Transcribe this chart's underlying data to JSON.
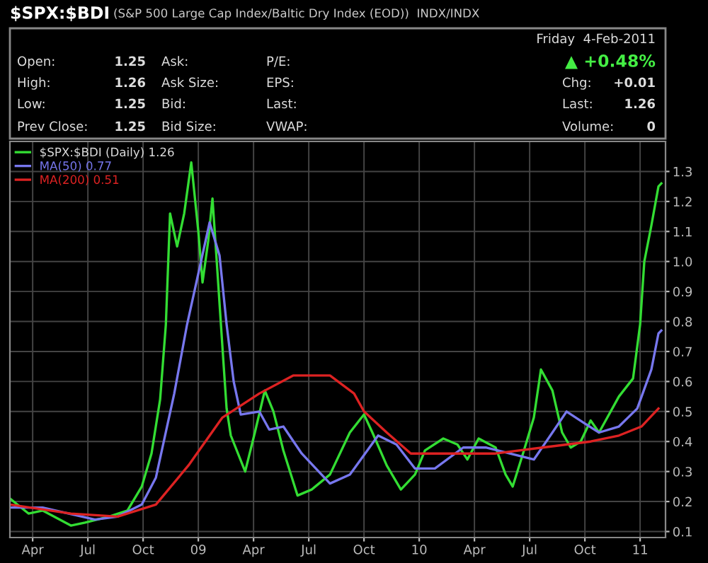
{
  "chart_data": {
    "type": "line",
    "title": "$SPX:$BDI",
    "subtitle": "(S&P 500 Large Cap Index/Baltic Dry Index (EOD))  INDX/INDX",
    "annotations": [
      "Friday  4-Feb-2011",
      "Open:",
      "1.25",
      "Ask:",
      "P/E:",
      "▲ +0.48%",
      "High:",
      "1.26",
      "Ask Size:",
      "EPS:",
      "Chg:",
      "+0.01",
      "Low:",
      "1.25",
      "Bid:",
      "Last:",
      "Last:",
      "1.26",
      "Prev Close:",
      "1.25",
      "Bid Size:",
      "VWAP:",
      "Volume:",
      "0"
    ],
    "legend": "top left",
    "grid": true,
    "tick_labels": "xy",
    "xlim": [
      2008.147,
      2011.115
    ],
    "ylim": [
      0.08,
      1.4
    ],
    "xticks": [
      {
        "value": 2008.25,
        "label": "Apr"
      },
      {
        "value": 2008.5,
        "label": "Jul"
      },
      {
        "value": 2008.75,
        "label": "Oct"
      },
      {
        "value": 2009.0,
        "label": "09"
      },
      {
        "value": 2009.25,
        "label": "Apr"
      },
      {
        "value": 2009.5,
        "label": "Jul"
      },
      {
        "value": 2009.75,
        "label": "Oct"
      },
      {
        "value": 2010.0,
        "label": "10"
      },
      {
        "value": 2010.25,
        "label": "Apr"
      },
      {
        "value": 2010.5,
        "label": "Jul"
      },
      {
        "value": 2010.75,
        "label": "Oct"
      },
      {
        "value": 2011.0,
        "label": "11"
      }
    ],
    "yticks": [
      0.1,
      0.2,
      0.3,
      0.4,
      0.5,
      0.6,
      0.7,
      0.8,
      0.9,
      {
        "value": 1.0,
        "label": "1.0"
      },
      1.1,
      1.2,
      1.3
    ],
    "series": [
      {
        "name": "$SPX:$BDI (Daily) 1.26",
        "color": "#33dd33",
        "x": [
          2008.147,
          2008.231,
          2008.295,
          2008.423,
          2008.487,
          2008.596,
          2008.679,
          2008.744,
          2008.788,
          2008.827,
          2008.853,
          2008.872,
          2008.904,
          2008.936,
          2008.968,
          2009.0,
          2009.019,
          2009.045,
          2009.064,
          2009.077,
          2009.115,
          2009.128,
          2009.147,
          2009.212,
          2009.256,
          2009.301,
          2009.34,
          2009.385,
          2009.449,
          2009.513,
          2009.596,
          2009.686,
          2009.75,
          2009.788,
          2009.853,
          2009.917,
          2009.981,
          2010.026,
          2010.109,
          2010.173,
          2010.218,
          2010.269,
          2010.346,
          2010.391,
          2010.423,
          2010.474,
          2010.519,
          2010.551,
          2010.603,
          2010.647,
          2010.686,
          2010.731,
          2010.776,
          2010.814,
          2010.904,
          2010.968,
          2011.0,
          2011.019,
          2011.051,
          2011.083,
          2011.096
        ],
        "values": [
          0.21,
          0.16,
          0.17,
          0.12,
          0.13,
          0.15,
          0.17,
          0.25,
          0.36,
          0.54,
          0.79,
          1.16,
          1.05,
          1.16,
          1.33,
          1.1,
          0.93,
          1.07,
          1.21,
          1.07,
          0.65,
          0.51,
          0.42,
          0.3,
          0.43,
          0.57,
          0.5,
          0.37,
          0.22,
          0.24,
          0.29,
          0.43,
          0.49,
          0.43,
          0.32,
          0.24,
          0.29,
          0.37,
          0.41,
          0.39,
          0.34,
          0.41,
          0.38,
          0.29,
          0.25,
          0.37,
          0.48,
          0.64,
          0.57,
          0.43,
          0.38,
          0.4,
          0.47,
          0.43,
          0.55,
          0.61,
          0.79,
          1.0,
          1.12,
          1.25,
          1.26
        ]
      },
      {
        "name": "MA(50) 0.77",
        "color": "#7777ee",
        "x": [
          2008.147,
          2008.295,
          2008.532,
          2008.635,
          2008.744,
          2008.808,
          2008.891,
          2008.949,
          2009.051,
          2009.096,
          2009.128,
          2009.16,
          2009.192,
          2009.276,
          2009.321,
          2009.385,
          2009.468,
          2009.596,
          2009.686,
          2009.814,
          2009.897,
          2009.981,
          2010.071,
          2010.199,
          2010.301,
          2010.41,
          2010.519,
          2010.603,
          2010.667,
          2010.75,
          2010.814,
          2010.904,
          2010.987,
          2011.051,
          2011.083,
          2011.096
        ],
        "values": [
          0.18,
          0.18,
          0.14,
          0.15,
          0.19,
          0.28,
          0.56,
          0.79,
          1.13,
          1.02,
          0.79,
          0.6,
          0.49,
          0.5,
          0.44,
          0.45,
          0.36,
          0.26,
          0.29,
          0.42,
          0.39,
          0.31,
          0.31,
          0.38,
          0.38,
          0.36,
          0.34,
          0.43,
          0.5,
          0.46,
          0.43,
          0.45,
          0.51,
          0.64,
          0.76,
          0.77
        ]
      },
      {
        "name": "MA(200) 0.51",
        "color": "#dd2222",
        "x": [
          2008.147,
          2008.423,
          2008.635,
          2008.808,
          2008.955,
          2009.109,
          2009.276,
          2009.429,
          2009.596,
          2009.705,
          2009.75,
          2009.853,
          2009.962,
          2010.135,
          2010.346,
          2010.558,
          2010.776,
          2010.904,
          2011.006,
          2011.083
        ],
        "values": [
          0.19,
          0.16,
          0.15,
          0.19,
          0.32,
          0.48,
          0.56,
          0.62,
          0.62,
          0.56,
          0.5,
          0.43,
          0.36,
          0.36,
          0.36,
          0.38,
          0.4,
          0.42,
          0.45,
          0.51
        ]
      }
    ]
  }
}
